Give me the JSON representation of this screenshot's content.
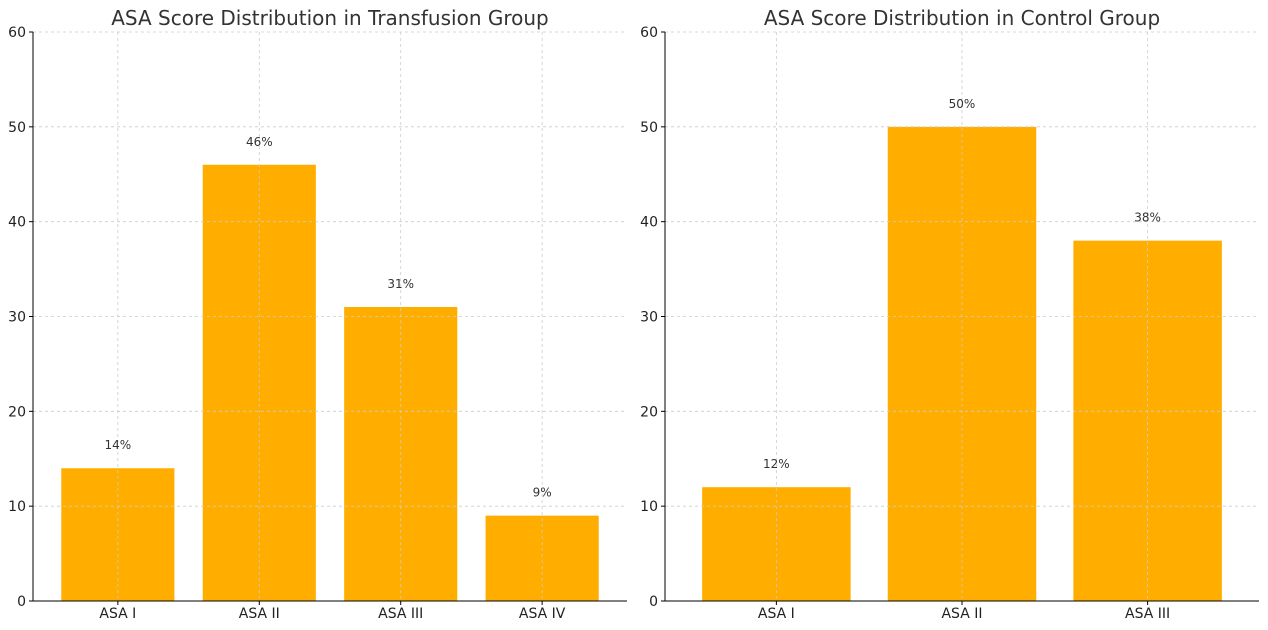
{
  "chart_data": [
    {
      "type": "bar",
      "title": "ASA Score Distribution in Transfusion Group",
      "xlabel": "",
      "ylabel": "",
      "categories": [
        "ASA I",
        "ASA II",
        "ASA III",
        "ASA IV"
      ],
      "values": [
        14,
        46,
        31,
        9
      ],
      "data_labels": [
        "14%",
        "46%",
        "31%",
        "9%"
      ],
      "ylim": [
        0,
        60
      ],
      "yticks": [
        0,
        10,
        20,
        30,
        40,
        50,
        60
      ],
      "grid": true,
      "bar_color": "#FFAE00"
    },
    {
      "type": "bar",
      "title": "ASA Score Distribution in Control Group",
      "xlabel": "",
      "ylabel": "",
      "categories": [
        "ASA I",
        "ASA II",
        "ASA III"
      ],
      "values": [
        12,
        50,
        38
      ],
      "data_labels": [
        "12%",
        "50%",
        "38%"
      ],
      "ylim": [
        0,
        60
      ],
      "yticks": [
        0,
        10,
        20,
        30,
        40,
        50,
        60
      ],
      "grid": true,
      "bar_color": "#FFAE00"
    }
  ]
}
